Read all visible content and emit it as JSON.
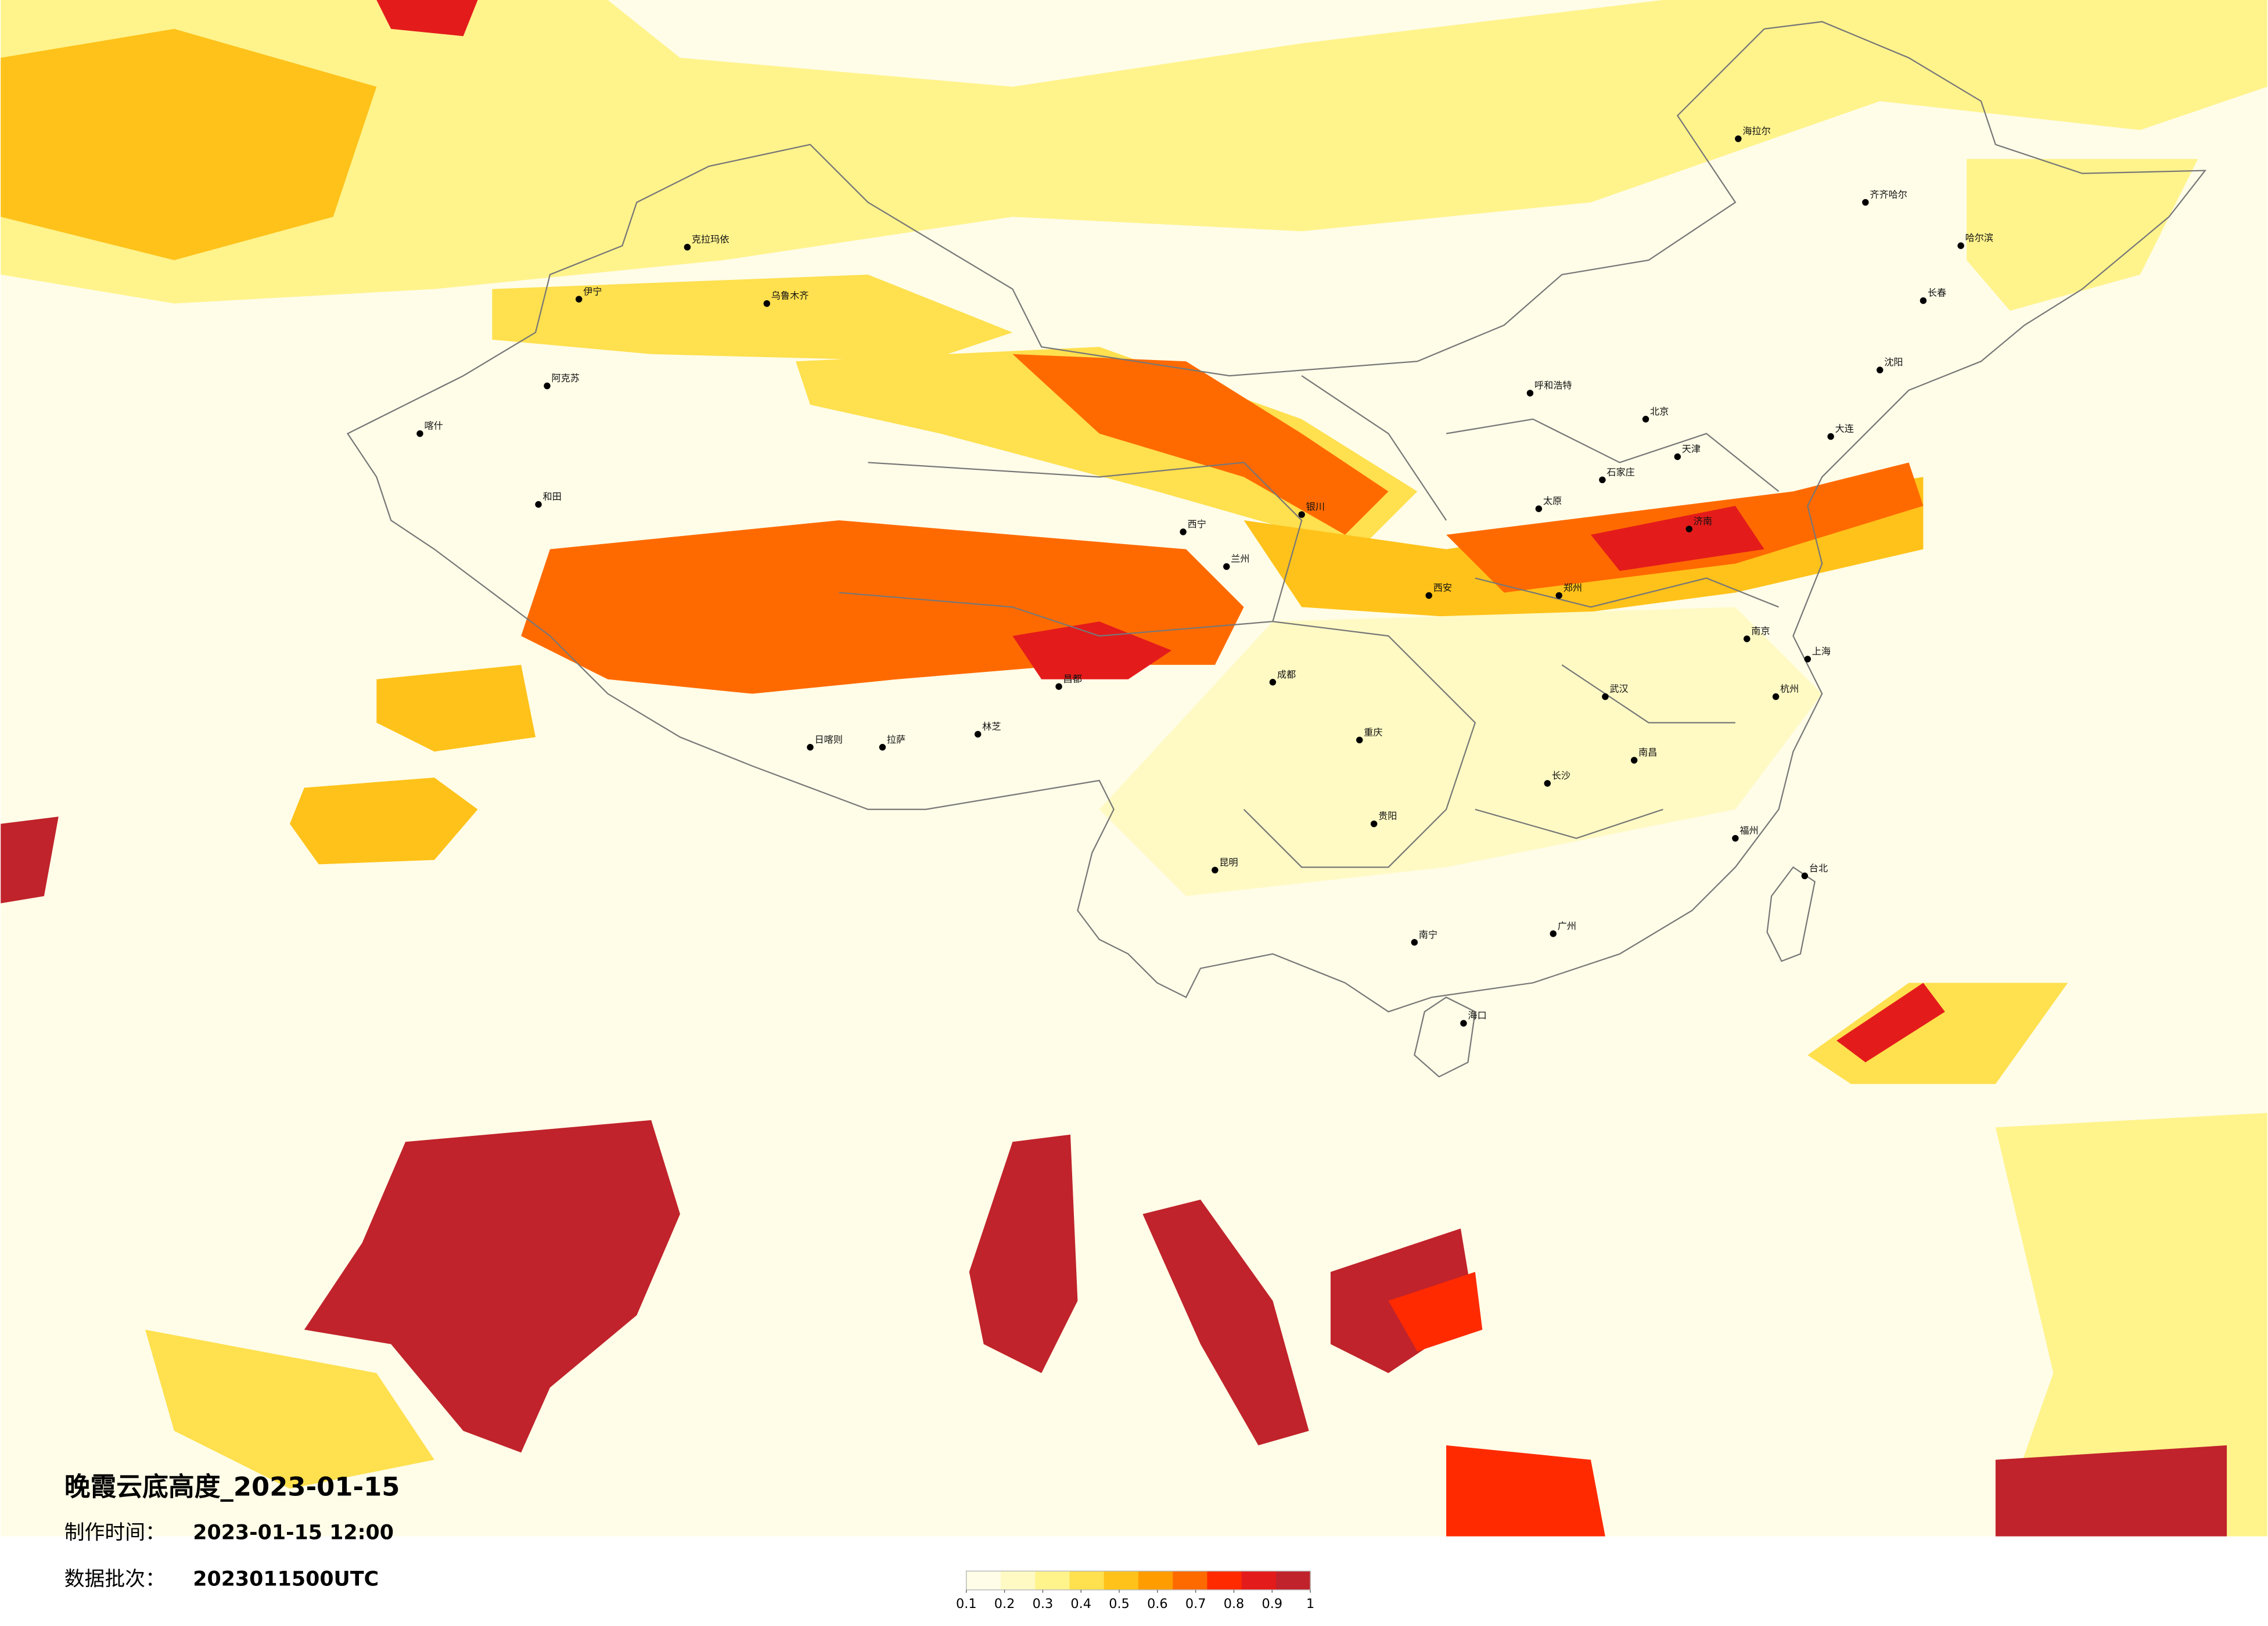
{
  "header": {
    "title": "晚霞云底高度_2023-01-15",
    "made_label": "制作时间：",
    "made_time": "2023-01-15 12:00",
    "batch_label": "数据批次：",
    "batch": "2023011500UTC"
  },
  "legend": {
    "colors": [
      "#fffde8",
      "#fffac4",
      "#fff38c",
      "#ffe04e",
      "#ffc21a",
      "#ff9c00",
      "#ff6a00",
      "#ff2a00",
      "#e41b1b",
      "#c0232b"
    ],
    "ticks": [
      0.1,
      0.2,
      0.3,
      0.4,
      0.5,
      0.6,
      0.7,
      0.8,
      0.9,
      1
    ],
    "range": [
      0.1,
      1
    ]
  },
  "cities": [
    "乌鲁木齐",
    "克拉玛依",
    "伊宁",
    "阿克苏",
    "喀什",
    "和田",
    "拉萨",
    "日喀则",
    "林芝",
    "昌都",
    "西宁",
    "兰州",
    "银川",
    "呼和浩特",
    "哈尔滨",
    "长春",
    "沈阳",
    "北京",
    "天津",
    "石家庄",
    "太原",
    "济南",
    "郑州",
    "西安",
    "成都",
    "重庆",
    "武汉",
    "南京",
    "上海",
    "杭州",
    "长沙",
    "南昌",
    "福州",
    "贵阳",
    "昆明",
    "南宁",
    "广州",
    "海口",
    "台北",
    "海拉尔",
    "齐齐哈尔",
    "大连"
  ]
}
